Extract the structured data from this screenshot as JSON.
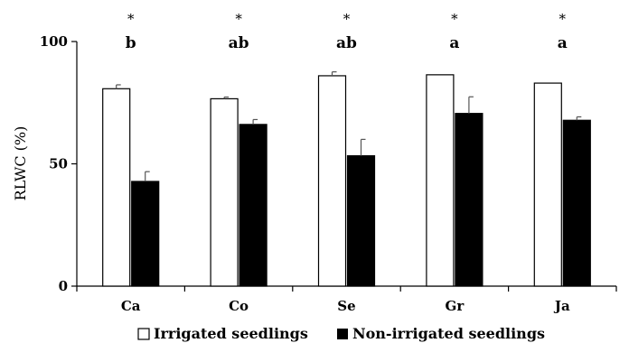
{
  "chart_data": {
    "type": "bar",
    "title": "",
    "xlabel": "",
    "ylabel": "RLWC (%)",
    "ylim": [
      0,
      100
    ],
    "yticks": [
      "0",
      "50",
      "100"
    ],
    "categories": [
      "Ca",
      "Co",
      "Se",
      "Gr",
      "Ja"
    ],
    "series": [
      {
        "name": "Irrigated seedlings",
        "fill": "#ffffff",
        "values": [
          80.7,
          76.6,
          86.0,
          86.4,
          83.0
        ],
        "errors": [
          1.6,
          0.7,
          1.6,
          0,
          0
        ]
      },
      {
        "name": "Non-irrigated seedlings",
        "fill": "#000000",
        "values": [
          42.8,
          66.1,
          53.3,
          70.6,
          67.8
        ],
        "errors": [
          4.0,
          2.0,
          6.7,
          6.8,
          1.4
        ]
      }
    ],
    "significance": [
      "*",
      "*",
      "*",
      "*",
      "*"
    ],
    "letters": [
      "b",
      "ab",
      "ab",
      "a",
      "a"
    ],
    "grid": false,
    "legend_position": "bottom"
  }
}
